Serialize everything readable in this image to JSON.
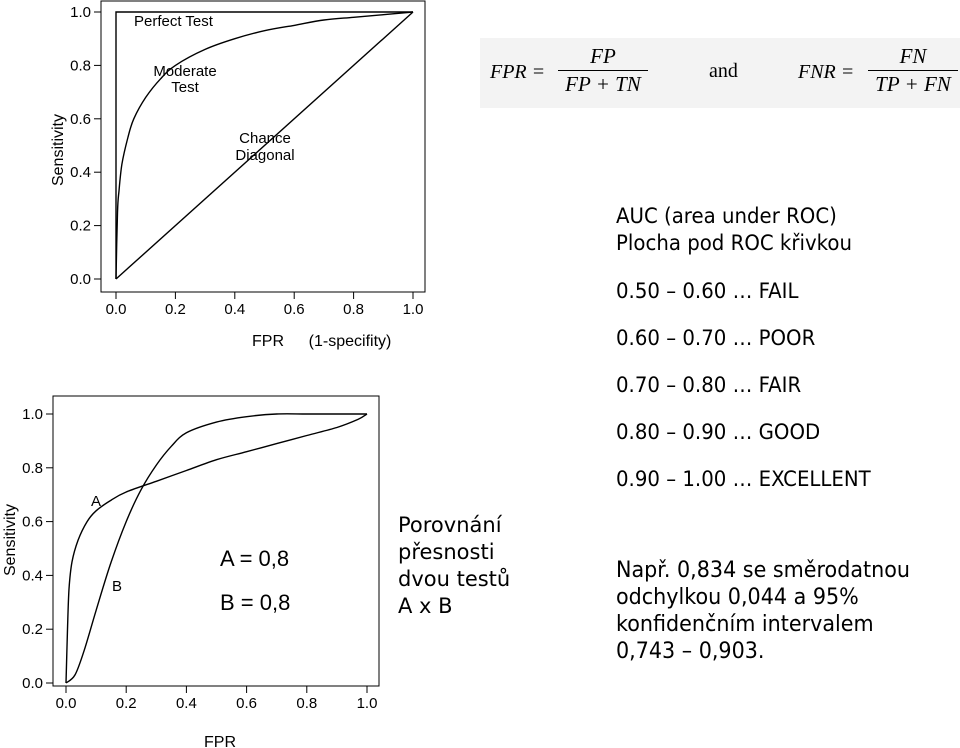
{
  "chart_data": [
    {
      "type": "line",
      "title": "",
      "xlabel": "FPR",
      "xlabel_note": "(1-specifity)",
      "ylabel": "Sensitivity",
      "xlim": [
        0,
        1
      ],
      "ylim": [
        0,
        1
      ],
      "x_ticks": [
        "0.0",
        "0.2",
        "0.4",
        "0.6",
        "0.8",
        "1.0"
      ],
      "y_ticks": [
        "0.0",
        "0.2",
        "0.4",
        "0.6",
        "0.8",
        "1.0"
      ],
      "series": [
        {
          "name": "Perfect Test",
          "x": [
            0,
            0,
            1
          ],
          "y": [
            0,
            1,
            1
          ]
        },
        {
          "name": "Moderate Test",
          "x": [
            0,
            0.005,
            0.01,
            0.02,
            0.04,
            0.06,
            0.1,
            0.15,
            0.2,
            0.3,
            0.4,
            0.5,
            0.6,
            0.7,
            0.8,
            0.9,
            1.0
          ],
          "y": [
            0,
            0.25,
            0.33,
            0.43,
            0.53,
            0.6,
            0.68,
            0.75,
            0.8,
            0.86,
            0.9,
            0.93,
            0.95,
            0.97,
            0.98,
            0.99,
            1.0
          ]
        },
        {
          "name": "Chance Diagonal",
          "x": [
            0,
            1
          ],
          "y": [
            0,
            1
          ]
        }
      ],
      "annotations": [
        {
          "text": "Perfect Test",
          "series": 0
        },
        {
          "text": "Moderate\nTest",
          "series": 1
        },
        {
          "text": "Chance\nDiagonal",
          "series": 2
        }
      ],
      "grid": false
    },
    {
      "type": "line",
      "title": "",
      "xlabel": "FPR",
      "ylabel": "Sensitivity",
      "xlim": [
        0,
        1
      ],
      "ylim": [
        0,
        1
      ],
      "x_ticks": [
        "0.0",
        "0.2",
        "0.4",
        "0.6",
        "0.8",
        "1.0"
      ],
      "y_ticks": [
        "0.0",
        "0.2",
        "0.4",
        "0.6",
        "0.8",
        "1.0"
      ],
      "series": [
        {
          "name": "A",
          "x": [
            0,
            0.005,
            0.01,
            0.02,
            0.04,
            0.07,
            0.1,
            0.15,
            0.2,
            0.3,
            0.4,
            0.5,
            0.6,
            0.7,
            0.8,
            0.9,
            0.97,
            1.0
          ],
          "y": [
            0,
            0.2,
            0.35,
            0.45,
            0.53,
            0.6,
            0.64,
            0.68,
            0.71,
            0.75,
            0.79,
            0.83,
            0.86,
            0.89,
            0.92,
            0.95,
            0.98,
            1.0
          ]
        },
        {
          "name": "B",
          "x": [
            0,
            0.03,
            0.06,
            0.1,
            0.15,
            0.2,
            0.25,
            0.3,
            0.35,
            0.4,
            0.5,
            0.6,
            0.7,
            0.8,
            0.9,
            1.0
          ],
          "y": [
            0,
            0.03,
            0.12,
            0.27,
            0.45,
            0.6,
            0.72,
            0.81,
            0.88,
            0.93,
            0.97,
            0.99,
            1.0,
            1.0,
            1.0,
            1.0
          ]
        }
      ],
      "grid": false
    }
  ],
  "formulas": {
    "fpr_lhs": "FPR =",
    "fpr_num": "FP",
    "fpr_den": "FP + TN",
    "and_word": "and",
    "fnr_lhs": "FNR =",
    "fnr_num": "FN",
    "fnr_den": "TP + FN"
  },
  "auc": {
    "title_line1": "AUC (area under ROC)",
    "title_line2": "Plocha pod ROC křivkou",
    "scale": [
      "0.50 – 0.60 … FAIL",
      "0.60 – 0.70 … POOR",
      "0.70 – 0.80 … FAIR",
      "0.80 – 0.90 … GOOD",
      "0.90 – 1.00 … EXCELLENT"
    ]
  },
  "comparison": {
    "lines": [
      "Porovnání",
      "přesnosti",
      "dvou testů",
      "A x B"
    ],
    "a_value": "A = 0,8",
    "b_value": "B = 0,8"
  },
  "example": {
    "lines": [
      "Např. 0,834 se směrodatnou",
      "odchylkou 0,044 a 95%",
      "konfidenčním intervalem",
      "0,743 – 0,903."
    ]
  }
}
